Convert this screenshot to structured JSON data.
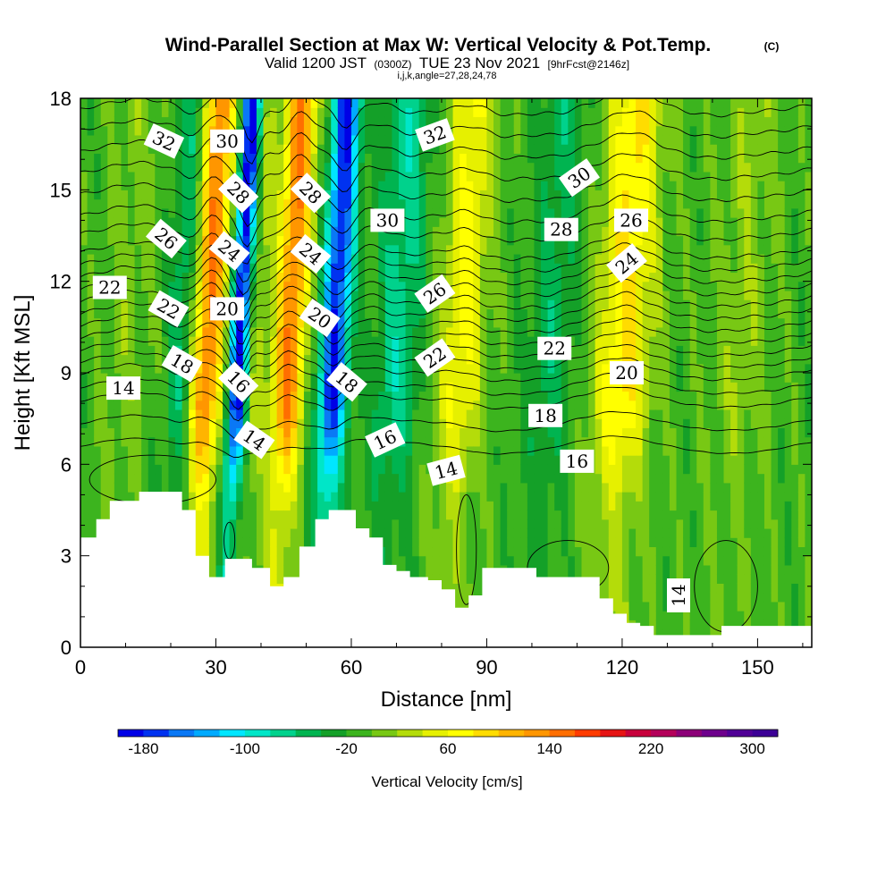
{
  "chart_data": {
    "type": "heatmap",
    "title": "Wind-Parallel Section at Max W: Vertical Velocity & Pot.Temp.",
    "title_mark": "(C)",
    "subtitle_parts": [
      "Valid 1200 JST",
      "(0300Z)",
      "TUE 23 Nov 2021",
      "[9hrFcst@2146z]"
    ],
    "subtitle2": "i,j,k,angle=27,28,24,78",
    "xlabel": "Distance [nm]",
    "ylabel": "Height [Kft MSL]",
    "xlim": [
      0,
      162
    ],
    "ylim": [
      0,
      18
    ],
    "x_ticks": [
      0,
      30,
      60,
      90,
      120,
      150
    ],
    "y_ticks": [
      0,
      3,
      6,
      9,
      12,
      15,
      18
    ],
    "colorbar": {
      "label": "Vertical Velocity [cm/s]",
      "tick_labels": [
        "-180",
        "-100",
        "-20",
        "60",
        "140",
        "220",
        "300"
      ],
      "range": [
        -200,
        320
      ],
      "step": 20,
      "colors": [
        "#0000e6",
        "#0032f0",
        "#0a78f5",
        "#00aaff",
        "#00e6ff",
        "#00e6c8",
        "#00d28c",
        "#00b450",
        "#14a028",
        "#3cb41e",
        "#78c814",
        "#b4dc0a",
        "#e6f000",
        "#ffff00",
        "#ffdc00",
        "#ffb400",
        "#ff9600",
        "#ff6e00",
        "#ff3c00",
        "#e61414",
        "#c8003c",
        "#b4005a",
        "#8c0078",
        "#6e008c",
        "#500096",
        "#3c0096"
      ]
    },
    "background_w": -10,
    "updraft_bands": [
      {
        "x": 28,
        "w": 3.5,
        "amp": 150
      },
      {
        "x": 46,
        "w": 3.5,
        "amp": 150
      },
      {
        "x": 84,
        "w": 5,
        "amp": 75
      },
      {
        "x": 120,
        "w": 6,
        "amp": 95
      },
      {
        "x": 38,
        "w": 3,
        "amp": 40
      },
      {
        "x": 146,
        "w": 6,
        "amp": 25
      },
      {
        "x": 10,
        "w": 5,
        "amp": 20
      }
    ],
    "downdraft_bands": [
      {
        "x": 35,
        "w": 2.2,
        "amp": -200
      },
      {
        "x": 56,
        "w": 3.2,
        "amp": -170
      },
      {
        "x": 70,
        "w": 5,
        "amp": -60
      },
      {
        "x": 104,
        "w": 5,
        "amp": -40
      },
      {
        "x": 22,
        "w": 3,
        "amp": -50
      }
    ],
    "terrain": [
      [
        0,
        3.6
      ],
      [
        3.5,
        4.2
      ],
      [
        6.5,
        4.8
      ],
      [
        13,
        5.1
      ],
      [
        22.5,
        4.5
      ],
      [
        25.5,
        3.0
      ],
      [
        28.5,
        2.3
      ],
      [
        32,
        2.9
      ],
      [
        38,
        2.6
      ],
      [
        42,
        2.0
      ],
      [
        45,
        2.3
      ],
      [
        48.5,
        3.3
      ],
      [
        52,
        4.2
      ],
      [
        55,
        4.5
      ],
      [
        61,
        3.9
      ],
      [
        64,
        3.6
      ],
      [
        67,
        2.7
      ],
      [
        70,
        2.5
      ],
      [
        73,
        2.3
      ],
      [
        77,
        2.2
      ],
      [
        80,
        1.9
      ],
      [
        83,
        1.3
      ],
      [
        86,
        1.7
      ],
      [
        89,
        2.6
      ],
      [
        96,
        2.6
      ],
      [
        101,
        2.3
      ],
      [
        112,
        2.3
      ],
      [
        115,
        1.6
      ],
      [
        118,
        1.1
      ],
      [
        121,
        0.8
      ],
      [
        124,
        0.7
      ],
      [
        127,
        0.4
      ],
      [
        140,
        0.4
      ],
      [
        142,
        0.7
      ],
      [
        162,
        0.7
      ]
    ],
    "theta_levels": [
      {
        "value": 14,
        "z": 6.6
      },
      {
        "value": 15,
        "z": 7.35
      },
      {
        "value": 16,
        "z": 8.1
      },
      {
        "value": 17,
        "z": 8.55
      },
      {
        "value": 18,
        "z": 9.0
      },
      {
        "value": 19,
        "z": 9.4
      },
      {
        "value": 20,
        "z": 9.8
      },
      {
        "value": 21,
        "z": 10.2
      },
      {
        "value": 22,
        "z": 10.6
      },
      {
        "value": 23,
        "z": 11.0
      },
      {
        "value": 24,
        "z": 11.4
      },
      {
        "value": 25,
        "z": 11.8
      },
      {
        "value": 26,
        "z": 12.2
      },
      {
        "value": 27,
        "z": 12.6
      },
      {
        "value": 28,
        "z": 13.0
      },
      {
        "value": 29,
        "z": 13.6
      },
      {
        "value": 30,
        "z": 14.2
      },
      {
        "value": 31,
        "z": 14.9
      },
      {
        "value": 32,
        "z": 15.6
      },
      {
        "value": 33,
        "z": 16.3
      },
      {
        "value": 34,
        "z": 17.0
      },
      {
        "value": 35,
        "z": 17.7
      }
    ],
    "contour_labels": [
      {
        "text": "32",
        "x": 18.5,
        "z": 16.6,
        "angle": 25
      },
      {
        "text": "30",
        "x": 32.5,
        "z": 16.6,
        "angle": 0
      },
      {
        "text": "28",
        "x": 35,
        "z": 14.9,
        "angle": 45
      },
      {
        "text": "28",
        "x": 51,
        "z": 14.9,
        "angle": 45
      },
      {
        "text": "26",
        "x": 19,
        "z": 13.4,
        "angle": 40
      },
      {
        "text": "24",
        "x": 33,
        "z": 13.0,
        "angle": 40
      },
      {
        "text": "24",
        "x": 51,
        "z": 12.9,
        "angle": 40
      },
      {
        "text": "22",
        "x": 6.5,
        "z": 11.8,
        "angle": 0
      },
      {
        "text": "22",
        "x": 19.5,
        "z": 11.1,
        "angle": 30
      },
      {
        "text": "20",
        "x": 32.5,
        "z": 11.1,
        "angle": 0
      },
      {
        "text": "20",
        "x": 53,
        "z": 10.8,
        "angle": 35
      },
      {
        "text": "18",
        "x": 22.5,
        "z": 9.3,
        "angle": 30
      },
      {
        "text": "16",
        "x": 35,
        "z": 8.7,
        "angle": 45
      },
      {
        "text": "18",
        "x": 59,
        "z": 8.7,
        "angle": 40
      },
      {
        "text": "14",
        "x": 9.5,
        "z": 8.5,
        "angle": 0
      },
      {
        "text": "14",
        "x": 38.5,
        "z": 6.8,
        "angle": 35
      },
      {
        "text": "16",
        "x": 67.5,
        "z": 6.8,
        "angle": -25
      },
      {
        "text": "14",
        "x": 81,
        "z": 5.8,
        "angle": -15
      },
      {
        "text": "32",
        "x": 78.5,
        "z": 16.8,
        "angle": -20
      },
      {
        "text": "30",
        "x": 68,
        "z": 14.0,
        "angle": 0
      },
      {
        "text": "26",
        "x": 78.5,
        "z": 11.6,
        "angle": -35
      },
      {
        "text": "22",
        "x": 78.5,
        "z": 9.5,
        "angle": -35
      },
      {
        "text": "30",
        "x": 110.5,
        "z": 15.4,
        "angle": -35
      },
      {
        "text": "28",
        "x": 106.5,
        "z": 13.7,
        "angle": 0
      },
      {
        "text": "26",
        "x": 122,
        "z": 14.0,
        "angle": 0
      },
      {
        "text": "24",
        "x": 121,
        "z": 12.6,
        "angle": -40
      },
      {
        "text": "22",
        "x": 105,
        "z": 9.8,
        "angle": 0
      },
      {
        "text": "20",
        "x": 121,
        "z": 9.0,
        "angle": 0
      },
      {
        "text": "18",
        "x": 103,
        "z": 7.6,
        "angle": 0
      },
      {
        "text": "16",
        "x": 110,
        "z": 6.1,
        "angle": 0
      },
      {
        "text": "14",
        "x": 132.5,
        "z": 1.7,
        "angle": -90
      }
    ]
  }
}
